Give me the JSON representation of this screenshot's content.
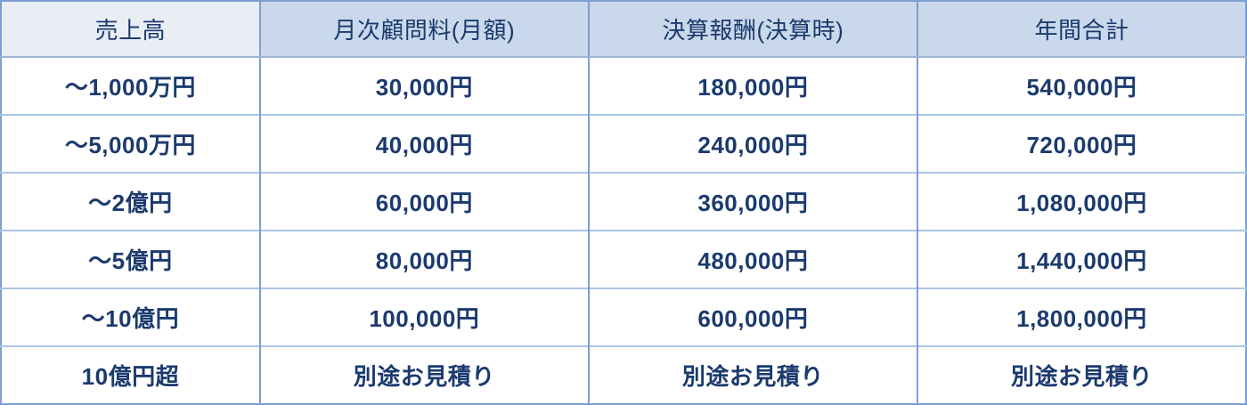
{
  "table": {
    "headers": [
      "売上高",
      "月次顧問料(月額)",
      "決算報酬(決算時)",
      "年間合計"
    ],
    "rows": [
      [
        "〜1,000万円",
        "30,000円",
        "180,000円",
        "540,000円"
      ],
      [
        "〜5,000万円",
        "40,000円",
        "240,000円",
        "720,000円"
      ],
      [
        "〜2億円",
        "60,000円",
        "360,000円",
        "1,080,000円"
      ],
      [
        "〜5億円",
        "80,000円",
        "480,000円",
        "1,440,000円"
      ],
      [
        "〜10億円",
        "100,000円",
        "600,000円",
        "1,800,000円"
      ],
      [
        "10億円超",
        "別途お見積り",
        "別途お見積り",
        "別途お見積り"
      ]
    ],
    "colors": {
      "text": "#1b3a6e",
      "body_bg": "#ffffff",
      "header_bg": "#c9d8ea",
      "header_first_bg": "#e9edf4",
      "border_outer": "#7d9ed2",
      "border_vertical": "#7d9ed2",
      "border_row": "#aac6e6",
      "header_separator": "#9fb5d0"
    }
  }
}
